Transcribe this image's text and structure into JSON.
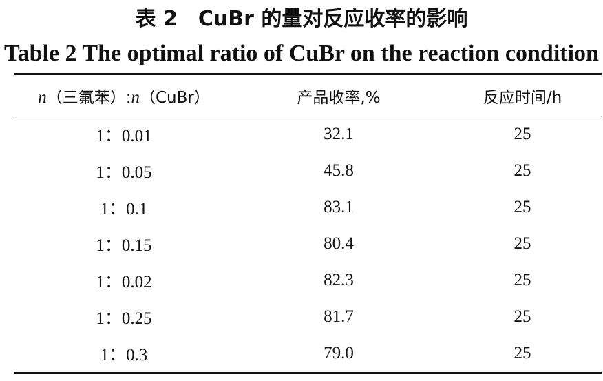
{
  "title": {
    "cn": "表 2　CuBr 的量对反应收率的影响",
    "en": "Table 2 The optimal ratio of CuBr on the reaction condition"
  },
  "table": {
    "headers": {
      "ratio": {
        "n1": "n",
        "part1": "（三氟苯）:",
        "n2": "n",
        "part2": "（CuBr）"
      },
      "yield": "产品收率,%",
      "time": "反应时间/h"
    },
    "rows": [
      {
        "ratio": "1：0.01",
        "yield": "32.1",
        "time": "25"
      },
      {
        "ratio": "1：0.05",
        "yield": "45.8",
        "time": "25"
      },
      {
        "ratio": "1：0.1",
        "yield": "83.1",
        "time": "25"
      },
      {
        "ratio": "1：0.15",
        "yield": "80.4",
        "time": "25"
      },
      {
        "ratio": "1：0.02",
        "yield": "82.3",
        "time": "25"
      },
      {
        "ratio": "1：0.25",
        "yield": "81.7",
        "time": "25"
      },
      {
        "ratio": "1：0.3",
        "yield": "79.0",
        "time": "25"
      }
    ]
  }
}
